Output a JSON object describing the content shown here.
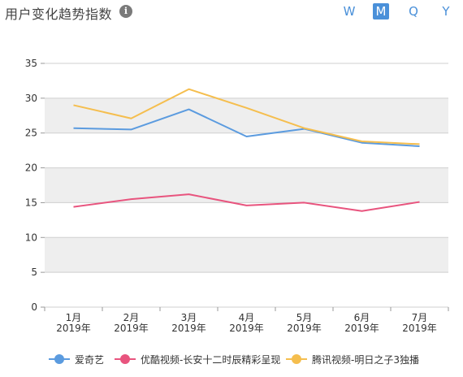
{
  "header": {
    "title": "用户变化趋势指数",
    "info_icon": "i",
    "periods": [
      {
        "label": "W",
        "active": false
      },
      {
        "label": "M",
        "active": true
      },
      {
        "label": "Q",
        "active": false
      },
      {
        "label": "Y",
        "active": false
      }
    ]
  },
  "colors": {
    "accent": "#4a90d9",
    "band": "#eeeeee",
    "gridline": "#cfcfcf"
  },
  "chart_data": {
    "type": "line",
    "categories": [
      [
        "1月",
        "2019年"
      ],
      [
        "2月",
        "2019年"
      ],
      [
        "3月",
        "2019年"
      ],
      [
        "4月",
        "2019年"
      ],
      [
        "5月",
        "2019年"
      ],
      [
        "6月",
        "2019年"
      ],
      [
        "7月",
        "2019年"
      ]
    ],
    "y_ticks": [
      "0",
      "5",
      "10",
      "15",
      "20",
      "25",
      "30",
      "35"
    ],
    "ylim": [
      0,
      35
    ],
    "grid": true,
    "legend_position": "bottom",
    "series": [
      {
        "name": "爱奇艺",
        "color": "#5b9bdf",
        "values": [
          25.7,
          25.5,
          28.4,
          24.5,
          25.6,
          23.6,
          23.1
        ]
      },
      {
        "name": "优酷视频-长安十二时辰精彩呈现",
        "color": "#e8547e",
        "values": [
          14.4,
          15.5,
          16.2,
          14.6,
          15.0,
          13.8,
          15.1
        ]
      },
      {
        "name": "腾讯视频-明日之子3独播",
        "color": "#f5be4e",
        "values": [
          29.0,
          27.1,
          31.3,
          28.6,
          25.7,
          23.8,
          23.4
        ]
      }
    ]
  }
}
